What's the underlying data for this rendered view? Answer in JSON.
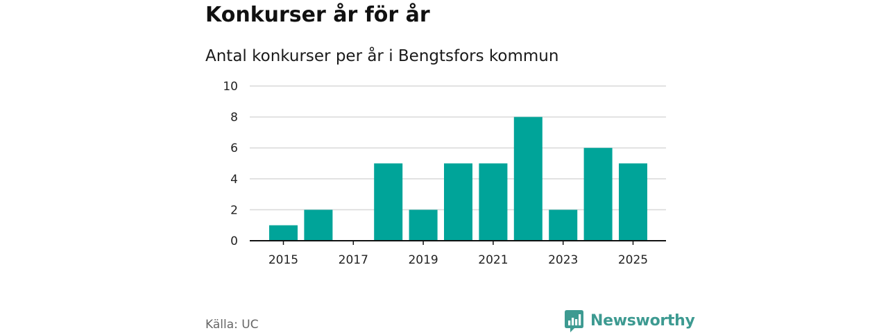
{
  "header": {
    "title": "Konkurser år för år",
    "subtitle": "Antal konkurser per år i Bengtsfors kommun"
  },
  "footer": {
    "source": "Källa: UC",
    "brand": "Newsworthy"
  },
  "colors": {
    "bar": "#00a499",
    "brand": "#3d9a91",
    "grid": "#d9d9d9",
    "axis": "#111111",
    "source_text": "#666666"
  },
  "icons": {
    "brand_logo": "newsworthy-logo-icon"
  },
  "chart_data": {
    "type": "bar",
    "title": "Antal konkurser per år i Bengtsfors kommun",
    "categories": [
      2015,
      2016,
      2017,
      2018,
      2019,
      2020,
      2021,
      2022,
      2023,
      2024,
      2025
    ],
    "values": [
      1,
      2,
      0,
      5,
      2,
      5,
      5,
      8,
      2,
      6,
      5
    ],
    "ylim": [
      0,
      10
    ],
    "yticks": [
      0,
      2,
      4,
      6,
      8,
      10
    ],
    "xticks": [
      2015,
      2017,
      2019,
      2021,
      2023,
      2025
    ],
    "grid": true,
    "legend": "none"
  }
}
